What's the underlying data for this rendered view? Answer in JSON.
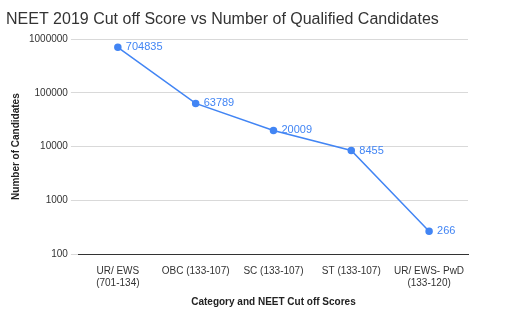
{
  "chart_data": {
    "type": "line",
    "title": "NEET 2019 Cut off Score vs Number of Qualified Candidates",
    "x_label": "Category and NEET Cut off Scores",
    "y_label": "Number of Candidates",
    "categories": [
      "UR/ EWS (701-134)",
      "OBC (133-107)",
      "SC (133-107)",
      "ST (133-107)",
      "UR/ EWS- PwD (133-120)"
    ],
    "values": [
      704835,
      63789,
      20009,
      8455,
      266
    ],
    "color": "#4285f4",
    "ylim": [
      100,
      1000000
    ],
    "yticks": [
      100,
      1000,
      10000,
      100000,
      1000000
    ],
    "log": "y",
    "grid": true,
    "data_labels": true,
    "marker": "circle"
  }
}
